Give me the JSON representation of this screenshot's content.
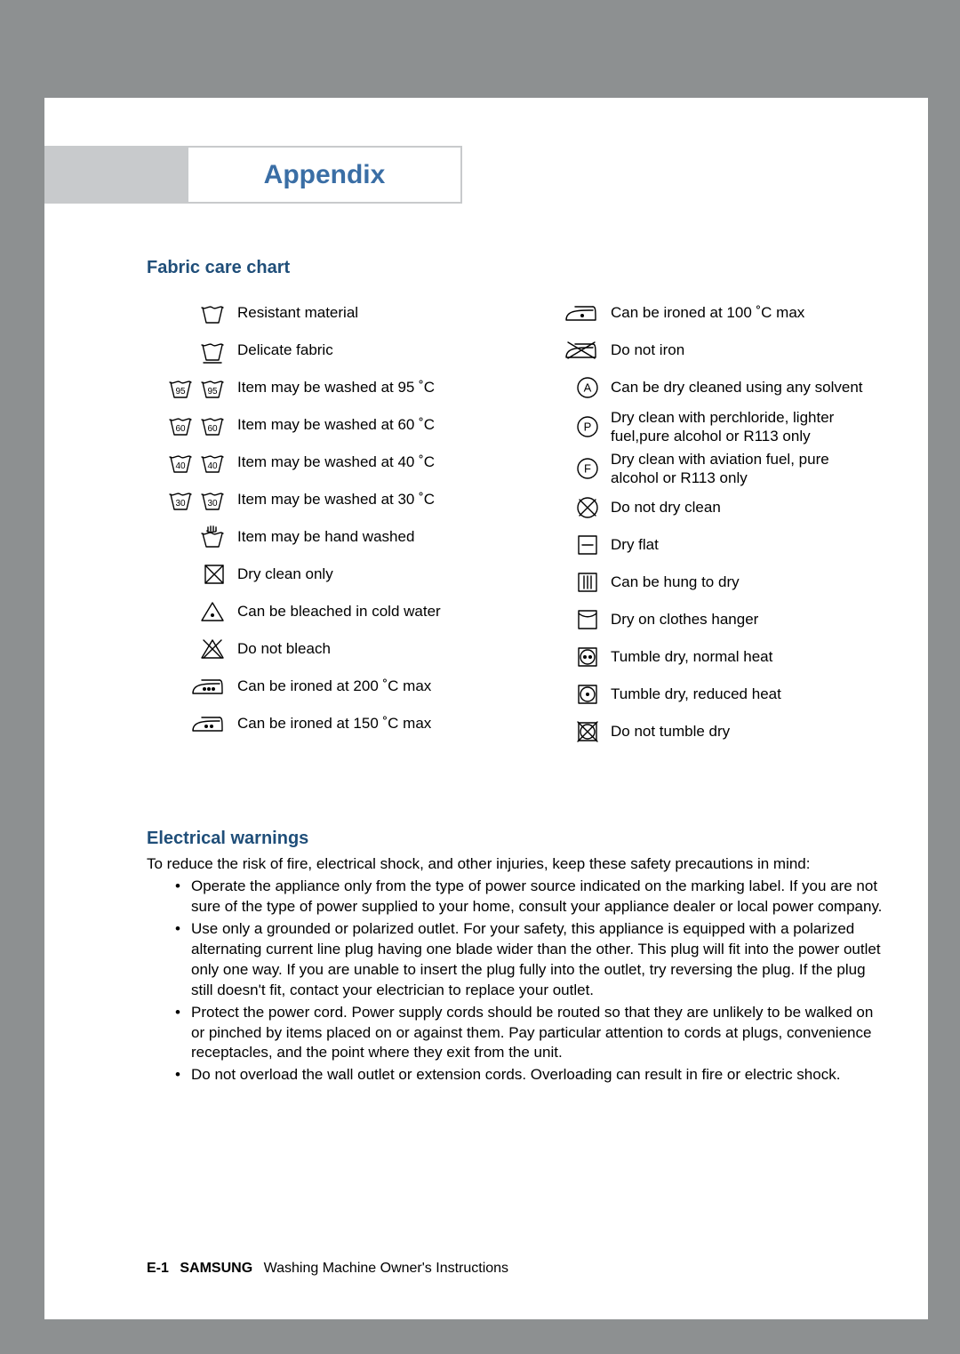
{
  "page": {
    "title": "Appendix",
    "fabric_title": "Fabric care chart",
    "warnings_title": "Electrical warnings",
    "footer_page": "E-1",
    "footer_brand": "SAMSUNG",
    "footer_tail": "Washing Machine Owner's Instructions"
  },
  "chart": {
    "left": [
      {
        "icon": "basin",
        "label": "Resistant material"
      },
      {
        "icon": "basin-dash",
        "label": "Delicate fabric"
      },
      {
        "icon": "basin-95-x2",
        "label": "Item may be washed at 95 ˚C"
      },
      {
        "icon": "basin-60-x2",
        "label": "Item may be washed at 60 ˚C"
      },
      {
        "icon": "basin-40-x2",
        "label": "Item may be washed at 40 ˚C"
      },
      {
        "icon": "basin-30-x2",
        "label": "Item may be washed at 30 ˚C"
      },
      {
        "icon": "hand-wash",
        "label": "Item may be hand washed"
      },
      {
        "icon": "dryclean-only",
        "label": "Dry clean only"
      },
      {
        "icon": "bleach",
        "label": "Can be bleached in cold water"
      },
      {
        "icon": "no-bleach",
        "label": "Do not bleach"
      },
      {
        "icon": "iron-3",
        "label": "Can be ironed at 200 ˚C max"
      },
      {
        "icon": "iron-2",
        "label": "Can be ironed at 150 ˚C max"
      }
    ],
    "right": [
      {
        "icon": "iron-1",
        "label": "Can be ironed at 100 ˚C max"
      },
      {
        "icon": "no-iron",
        "label": "Do not iron"
      },
      {
        "icon": "circle-a",
        "label": "Can be dry cleaned using any solvent"
      },
      {
        "icon": "circle-p",
        "label": "Dry clean with perchloride, lighter fuel,pure alcohol or R113 only"
      },
      {
        "icon": "circle-f",
        "label": "Dry clean with aviation fuel, pure alcohol or R113 only"
      },
      {
        "icon": "no-dryclean",
        "label": "Do not dry clean"
      },
      {
        "icon": "sq-dash",
        "label": "Dry flat"
      },
      {
        "icon": "sq-bars",
        "label": "Can be hung to dry"
      },
      {
        "icon": "sq-curve",
        "label": "Dry on clothes hanger"
      },
      {
        "icon": "tumble-2dot",
        "label": "Tumble dry, normal heat"
      },
      {
        "icon": "tumble-1dot",
        "label": "Tumble dry, reduced heat"
      },
      {
        "icon": "no-tumble",
        "label": "Do not tumble dry"
      }
    ]
  },
  "warnings": {
    "intro": "To reduce the risk of fire, electrical shock, and other injuries, keep these safety precautions in mind:",
    "items": [
      "Operate the appliance only from the type of power source indicated on the marking label. If you are not sure of the type of power supplied to your home, consult your appliance dealer or local power company.",
      "Use only a grounded or polarized outlet. For your safety, this appliance is equipped with a polarized alternating current line plug having one blade wider than the other. This plug will fit into the power outlet only one way. If you are unable to insert the plug fully into the outlet, try reversing the plug. If the plug still doesn't fit, contact your electrician to replace your outlet.",
      "Protect the power cord. Power supply cords should be routed so that they are unlikely to be walked on or pinched by items placed on or against them. Pay particular attention to cords at plugs, convenience receptacles, and the point where they exit from the unit.",
      "Do not overload the wall outlet or extension cords. Overloading can result in fire or electric shock."
    ]
  }
}
